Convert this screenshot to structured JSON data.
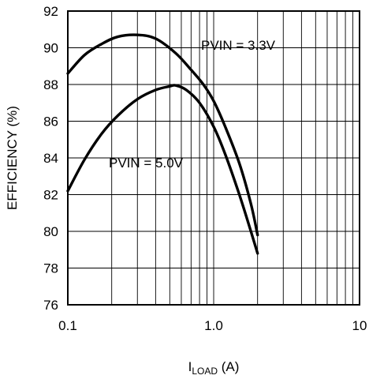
{
  "chart_data": {
    "type": "line",
    "xscale": "log",
    "xlim": [
      0.1,
      10
    ],
    "ylim": [
      76,
      92
    ],
    "grid": true,
    "xticks": [
      "0.1",
      "1.0",
      "10"
    ],
    "yticks": [
      "76",
      "78",
      "80",
      "82",
      "84",
      "86",
      "88",
      "90",
      "92"
    ],
    "ylabel": "EFFICIENCY (%)",
    "xlabel_main": "I",
    "xlabel_sub": "LOAD",
    "xlabel_unit": " (A)",
    "series": [
      {
        "name": "PVIN = 3.3V",
        "x": [
          0.1,
          0.13,
          0.17,
          0.22,
          0.3,
          0.4,
          0.55,
          0.7,
          0.85,
          1.0,
          1.2,
          1.5,
          1.8,
          2.0
        ],
        "y": [
          88.6,
          89.6,
          90.2,
          90.6,
          90.7,
          90.5,
          89.7,
          88.8,
          88.0,
          87.1,
          85.7,
          83.7,
          81.5,
          79.8
        ]
      },
      {
        "name": "PVIN = 5.0V",
        "x": [
          0.1,
          0.13,
          0.17,
          0.22,
          0.3,
          0.4,
          0.5,
          0.55,
          0.65,
          0.8,
          1.0,
          1.2,
          1.5,
          1.8,
          2.0
        ],
        "y": [
          82.2,
          83.9,
          85.3,
          86.3,
          87.2,
          87.7,
          87.9,
          87.95,
          87.7,
          87.0,
          85.7,
          84.2,
          82.0,
          80.0,
          78.8
        ]
      }
    ],
    "annotations": [
      {
        "text": "PVIN = 3.3V",
        "series": 0
      },
      {
        "text": "PVIN = 5.0V",
        "series": 1
      }
    ]
  }
}
